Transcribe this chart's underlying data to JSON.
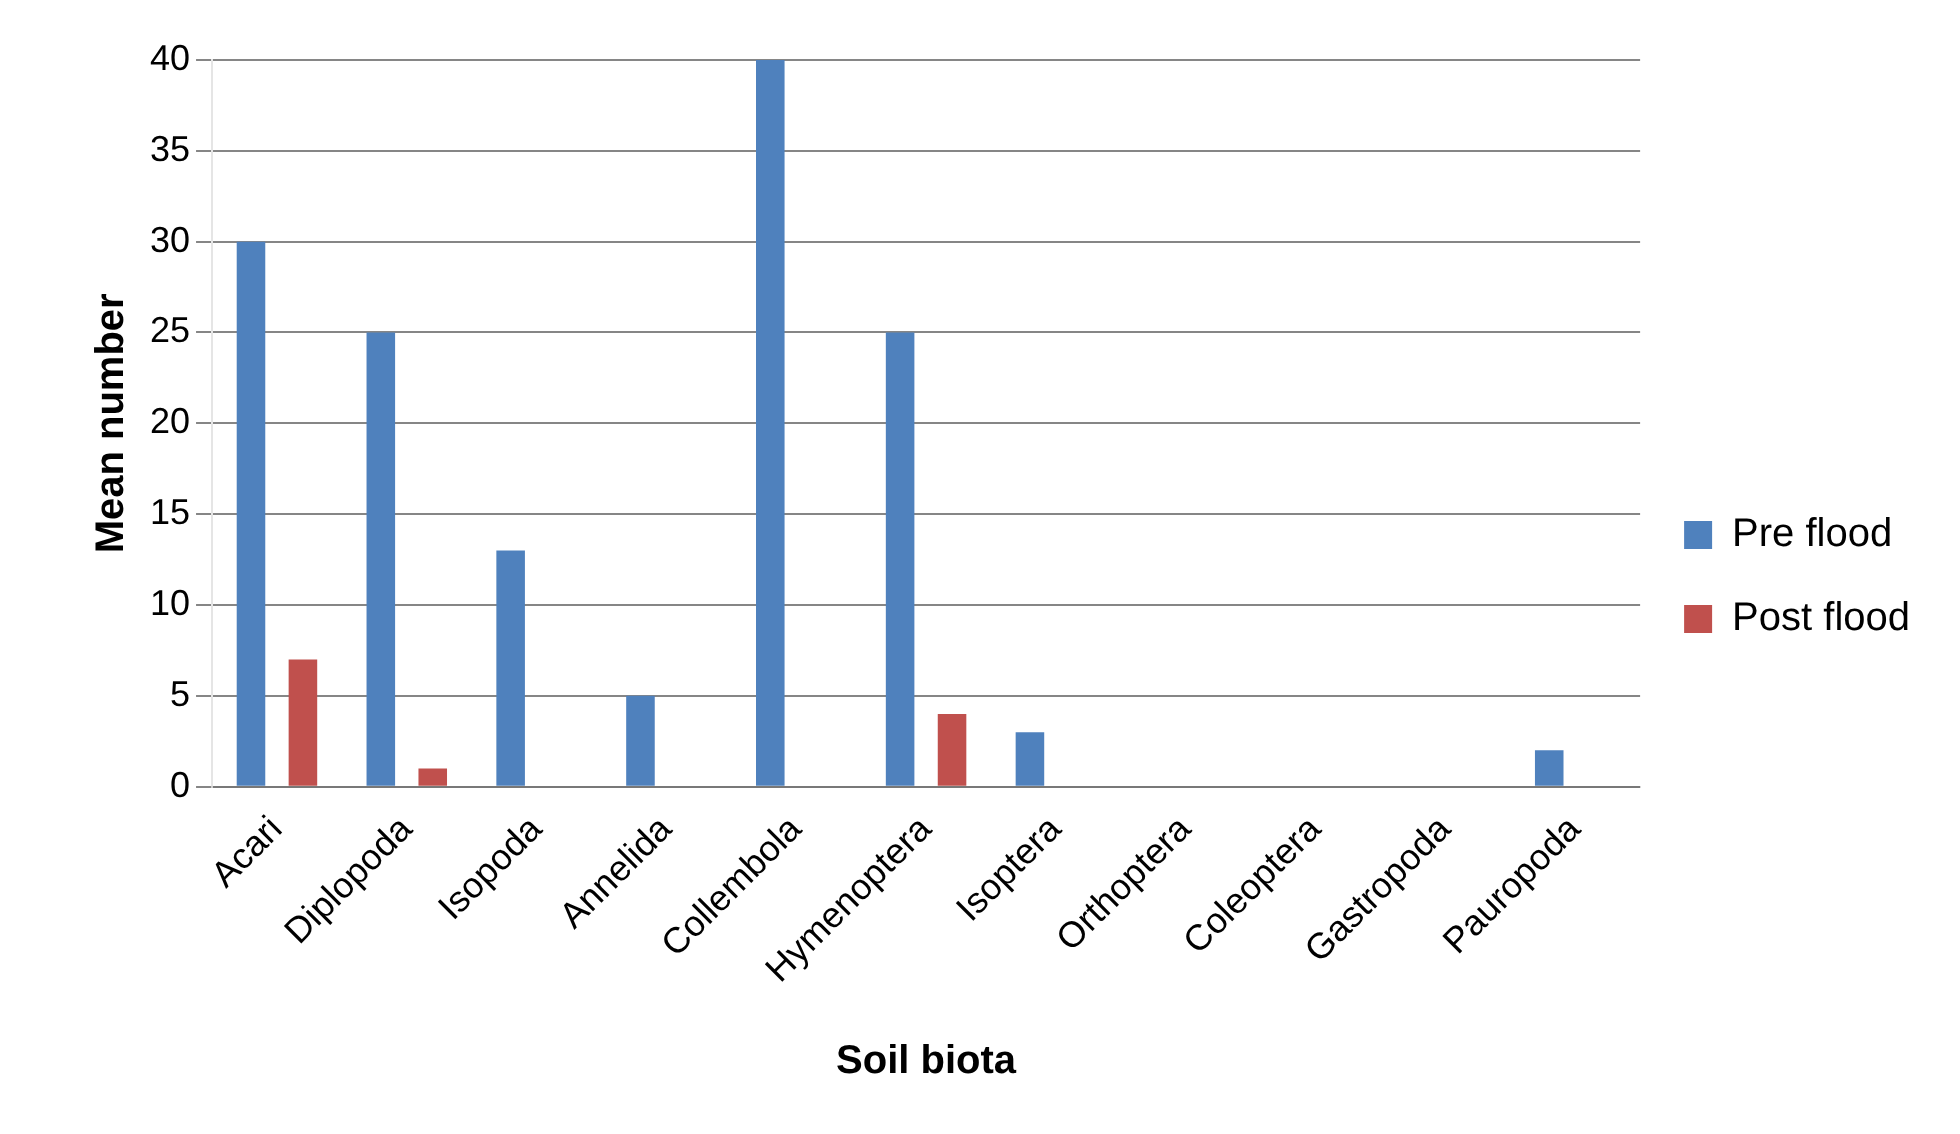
{
  "chart_data": {
    "type": "bar",
    "xlabel": "Soil biota",
    "ylabel": "Mean number",
    "categories": [
      "Acari",
      "Diplopoda",
      "Isopoda",
      "Annelida",
      "Collembola",
      "Hymenoptera",
      "Isoptera",
      "Orthoptera",
      "Coleoptera",
      "Gastropoda",
      "Pauropoda"
    ],
    "series": [
      {
        "name": "Pre flood",
        "color": "#4f81bd",
        "values": [
          30,
          25,
          13,
          5,
          40,
          25,
          3,
          0,
          0,
          0,
          2
        ]
      },
      {
        "name": "Post flood",
        "color": "#c0504d",
        "values": [
          7,
          1,
          0,
          0,
          0,
          4,
          0,
          0,
          0,
          0,
          0
        ]
      }
    ],
    "ylim": [
      0,
      40
    ],
    "yticks": [
      0,
      5,
      10,
      15,
      20,
      25,
      30,
      35,
      40
    ],
    "grid": "y",
    "legend": "right"
  }
}
